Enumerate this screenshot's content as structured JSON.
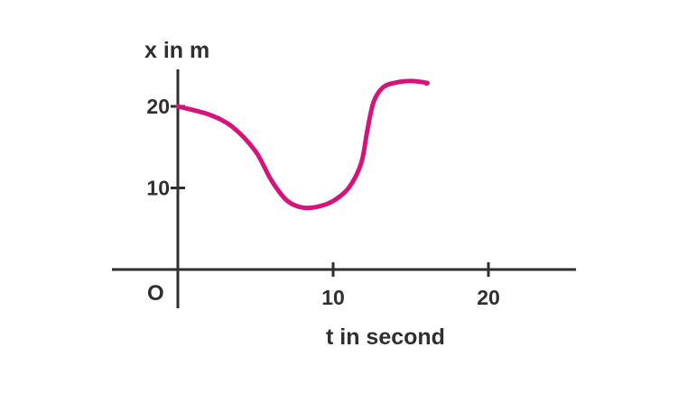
{
  "chart_data": {
    "type": "line",
    "title": "",
    "xlabel": "t in second",
    "ylabel": "x in m",
    "origin_label": "O",
    "xlim": [
      -4,
      25
    ],
    "ylim": [
      -5,
      24
    ],
    "x_ticks": [
      10,
      20
    ],
    "x_tick_labels": [
      "10",
      "20"
    ],
    "y_ticks": [
      10,
      20
    ],
    "y_tick_labels": [
      "10",
      "20"
    ],
    "grid": false,
    "colors": {
      "curve": "#d6137a",
      "axes": "#2f2f2f"
    },
    "series": [
      {
        "x": [
          0,
          2,
          3.5,
          5,
          6,
          7,
          8,
          9,
          10,
          11,
          11.8,
          12.2,
          12.6,
          13.2,
          14,
          15,
          16,
          16
        ],
        "y": [
          20,
          19,
          17.5,
          14.5,
          11,
          8.5,
          7.6,
          7.7,
          8.4,
          10,
          13,
          17,
          20.5,
          22.3,
          22.9,
          23.1,
          22.9,
          22.8
        ]
      }
    ]
  }
}
